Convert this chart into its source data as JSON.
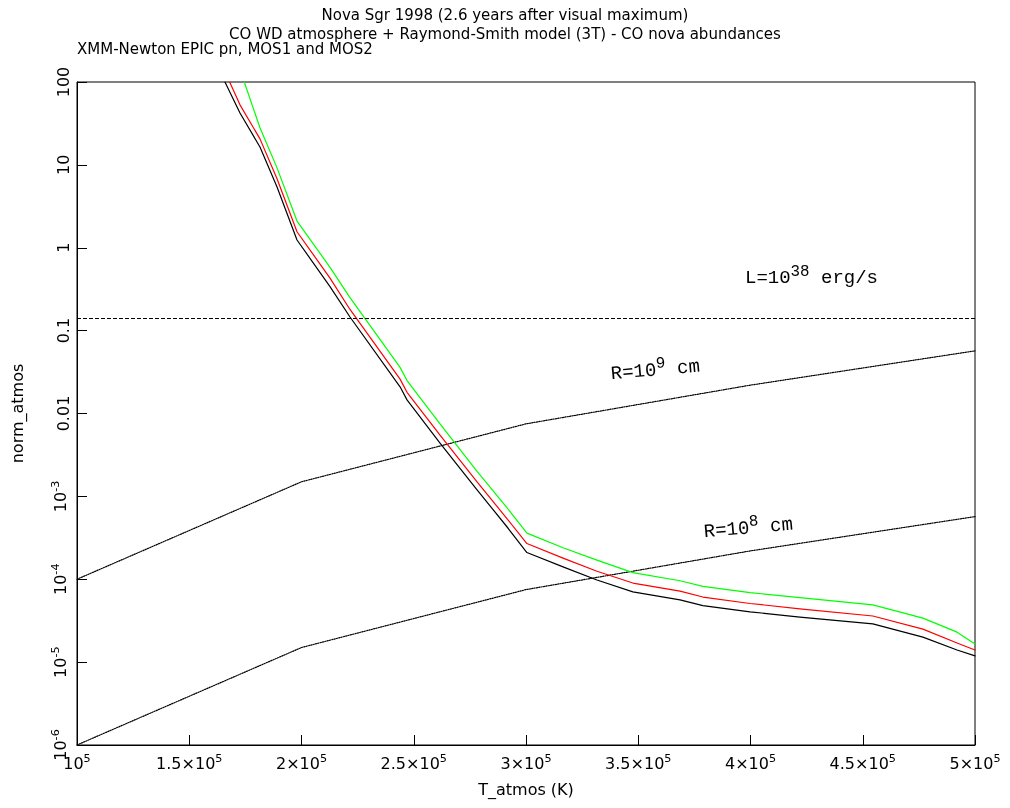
{
  "chart_data": {
    "type": "line",
    "title": "Nova Sgr 1998 (2.6 years after visual maximum)",
    "subtitle": "CO WD atmosphere + Raymond-Smith model (3T) - CO nova abundances",
    "xlabel": "T_atmos (K)",
    "ylabel": "norm_atmos",
    "log": "y",
    "grid": false,
    "marker": "none",
    "xlim": [
      100000,
      500000
    ],
    "ylim": [
      1e-06,
      100
    ],
    "xticks": [
      {
        "value": 100000,
        "label": "10$^{5}$"
      },
      {
        "value": 150000,
        "label": "1.5×10$^{5}$"
      },
      {
        "value": 200000,
        "label": "2×10$^{5}$"
      },
      {
        "value": 250000,
        "label": "2.5×10$^{5}$"
      },
      {
        "value": 300000,
        "label": "3×10$^{5}$"
      },
      {
        "value": 350000,
        "label": "3.5×10$^{5}$"
      },
      {
        "value": 400000,
        "label": "4×10$^{5}$"
      },
      {
        "value": 450000,
        "label": "4.5×10$^{5}$"
      },
      {
        "value": 500000,
        "label": "5×10$^{5}$"
      }
    ],
    "yticks": [
      {
        "value": 1e-06,
        "label": "10$^{-6}$"
      },
      {
        "value": 1e-05,
        "label": "10$^{-5}$"
      },
      {
        "value": 0.0001,
        "label": "10$^{-4}$"
      },
      {
        "value": 0.001,
        "label": "10$^{-3}$"
      },
      0.01,
      0.1,
      1,
      10,
      100
    ],
    "series": [
      {
        "color": "#000000",
        "line_style": "solid",
        "x": [
          165900,
          172600,
          181500,
          189100,
          198000,
          212700,
          221600,
          243900,
          247000,
          261700,
          278200,
          291500,
          300400,
          316500,
          331600,
          347600,
          368600,
          378800,
          399800,
          422000,
          454500,
          476800,
          492000,
          500000
        ],
        "values": [
          100,
          42.3,
          16.4,
          5.4,
          1.24,
          0.34,
          0.146,
          0.021,
          0.0146,
          0.0044,
          0.0012,
          0.00043,
          0.00021,
          0.000141,
          9.8e-05,
          7.05e-05,
          5.65e-05,
          4.8e-05,
          4.05e-05,
          3.5e-05,
          2.9e-05,
          2e-05,
          1.4e-05,
          1.19e-05
        ]
      },
      {
        "color": "#ff0000",
        "line_style": "solid",
        "x": [
          168000,
          172600,
          181500,
          189100,
          198000,
          212700,
          221600,
          243900,
          247000,
          261700,
          278200,
          291500,
          300400,
          316500,
          331600,
          347600,
          368600,
          378800,
          399800,
          422000,
          454500,
          476800,
          492000,
          500000
        ],
        "values": [
          100,
          53,
          20.6,
          6.8,
          1.56,
          0.43,
          0.18,
          0.026,
          0.018,
          0.0055,
          0.0015,
          0.00054,
          0.00027,
          0.00018,
          0.000125,
          9e-05,
          7.2e-05,
          6.1e-05,
          5.1e-05,
          4.4e-05,
          3.6e-05,
          2.5e-05,
          1.7e-05,
          1.4e-05
        ]
      },
      {
        "color": "#00ff00",
        "line_style": "solid",
        "x": [
          174500,
          181500,
          189100,
          198000,
          212700,
          221600,
          243900,
          247000,
          261700,
          278200,
          291500,
          300400,
          316500,
          331600,
          347600,
          368600,
          378800,
          399800,
          422000,
          454500,
          476800,
          492000,
          500000
        ],
        "values": [
          100,
          28,
          9.2,
          2.1,
          0.58,
          0.25,
          0.036,
          0.025,
          0.0075,
          0.002,
          0.00073,
          0.00036,
          0.00024,
          0.00017,
          0.00012,
          9.6e-05,
          8.2e-05,
          6.9e-05,
          6e-05,
          4.9e-05,
          3.4e-05,
          2.3e-05,
          1.65e-05
        ]
      },
      {
        "color": "#000000",
        "line_style": "dotted",
        "x": [
          100000,
          200000,
          300000,
          400000,
          500000
        ],
        "values": [
          0.0001,
          0.0015,
          0.0075,
          0.022,
          0.057
        ]
      },
      {
        "color": "#000000",
        "line_style": "dotted",
        "x": [
          100000,
          200000,
          300000,
          400000,
          500000
        ],
        "values": [
          1e-06,
          1.5e-05,
          7.5e-05,
          0.00022,
          0.00057
        ]
      }
    ],
    "ref_lines": [
      {
        "axis": "y",
        "value": 0.14,
        "color": "#000000",
        "line_style": "dashed"
      }
    ],
    "annotations": [
      "XMM-Newton EPIC pn, MOS1 and MOS2",
      "L=10$^{38}$ erg/s",
      "R=10$^{9}$ cm",
      "R=10$^{8}$ cm"
    ]
  }
}
